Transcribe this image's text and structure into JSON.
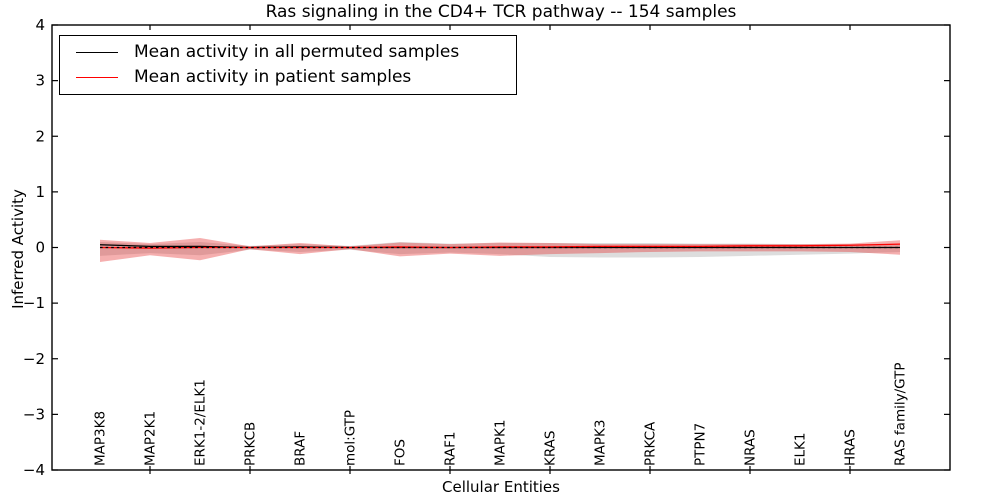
{
  "window": {
    "kind": "matplotlib-figure"
  },
  "chart_data": {
    "type": "line",
    "title": "Ras signaling in the CD4+ TCR pathway -- 154 samples",
    "xlabel": "Cellular Entities",
    "ylabel": "Inferred Activity",
    "ylim": [
      -4,
      4
    ],
    "yticks": [
      -4,
      -3,
      -2,
      -1,
      0,
      1,
      2,
      3,
      4
    ],
    "grid": false,
    "legend_position": "upper-left",
    "categories": [
      "MAP3K8",
      "MAP2K1",
      "ERK1-2/ELK1",
      "PRKCB",
      "BRAF",
      "mol:GTP",
      "FOS",
      "RAF1",
      "MAPK1",
      "KRAS",
      "MAPK3",
      "PRKCA",
      "PTPN7",
      "NRAS",
      "ELK1",
      "HRAS",
      "RAS family/GTP"
    ],
    "series": [
      {
        "name": "Mean activity in all permuted samples",
        "color": "#000000",
        "style": "solid",
        "values": [
          0.05,
          0.02,
          0.02,
          0.0,
          0.01,
          0.0,
          0.0,
          0.0,
          0.0,
          0.0,
          0.0,
          0.0,
          0.0,
          0.0,
          0.0,
          0.0,
          0.0
        ]
      },
      {
        "name": "Mean activity in patient samples",
        "color": "#ff0000",
        "style": "solid",
        "values": [
          0.0,
          -0.01,
          0.0,
          0.0,
          0.0,
          0.0,
          0.01,
          0.0,
          0.01,
          0.01,
          0.02,
          0.02,
          0.02,
          0.03,
          0.03,
          0.04,
          0.06
        ]
      }
    ],
    "bands": [
      {
        "name": "permuted-samples-std-band",
        "color": "#909090",
        "opacity": 0.3,
        "upper": [
          0.1,
          0.06,
          0.1,
          0.03,
          0.06,
          0.03,
          0.1,
          0.07,
          0.08,
          0.08,
          0.08,
          0.08,
          0.07,
          0.07,
          0.06,
          0.06,
          0.05
        ],
        "lower": [
          -0.15,
          -0.1,
          -0.14,
          -0.04,
          -0.08,
          -0.04,
          -0.12,
          -0.09,
          -0.12,
          -0.17,
          -0.18,
          -0.18,
          -0.17,
          -0.15,
          -0.13,
          -0.11,
          -0.08
        ]
      },
      {
        "name": "patient-samples-std-band",
        "color": "#e62e2e",
        "opacity": 0.38,
        "upper": [
          0.14,
          0.08,
          0.17,
          0.02,
          0.08,
          0.02,
          0.09,
          0.06,
          0.09,
          0.08,
          0.06,
          0.06,
          0.06,
          0.06,
          0.06,
          0.07,
          0.13
        ],
        "lower": [
          -0.26,
          -0.14,
          -0.23,
          -0.03,
          -0.12,
          -0.03,
          -0.16,
          -0.11,
          -0.15,
          -0.12,
          -0.1,
          -0.08,
          -0.07,
          -0.07,
          -0.07,
          -0.08,
          -0.13
        ]
      }
    ],
    "zero_line": {
      "y": 0,
      "style": "dashed",
      "color": "#000000"
    }
  },
  "legend": {
    "entries": [
      {
        "label": "Mean activity in all permuted samples",
        "color": "#000000"
      },
      {
        "label": "Mean activity in patient samples",
        "color": "#ff0000"
      }
    ]
  }
}
